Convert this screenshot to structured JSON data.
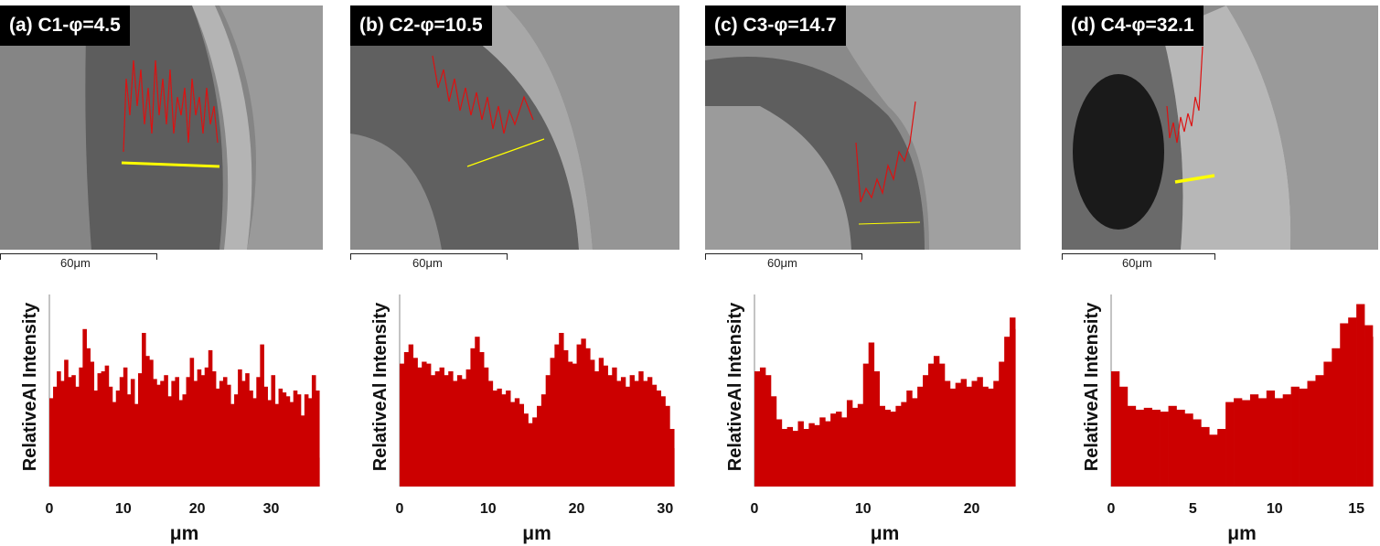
{
  "panels": [
    {
      "label": "(a) C1-φ=4.5",
      "scale_label": "60μm"
    },
    {
      "label": "(b) C2-φ=10.5",
      "scale_label": "60μm"
    },
    {
      "label": "(c) C3-φ=14.7",
      "scale_label": "60μm"
    },
    {
      "label": "(d) C4-φ=32.1",
      "scale_label": "60μm"
    }
  ],
  "colors": {
    "bars": "#cc0000",
    "trace": "#dd1111",
    "scan_line": "#ffff00"
  },
  "chart_data": [
    {
      "type": "bar",
      "xlabel": "μm",
      "ylabel": "RelativeAl Intensity",
      "xlim": [
        0,
        36.5
      ],
      "ylim": [
        0,
        1
      ],
      "xticks": [
        0,
        10,
        20,
        30
      ],
      "x": [
        0,
        0.5,
        1,
        1.5,
        2,
        2.5,
        3,
        3.5,
        4,
        4.5,
        5,
        5.5,
        6,
        6.5,
        7,
        7.5,
        8,
        8.5,
        9,
        9.5,
        10,
        10.5,
        11,
        11.5,
        12,
        12.5,
        13,
        13.5,
        14,
        14.5,
        15,
        15.5,
        16,
        16.5,
        17,
        17.5,
        18,
        18.5,
        19,
        19.5,
        20,
        20.5,
        21,
        21.5,
        22,
        22.5,
        23,
        23.5,
        24,
        24.5,
        25,
        25.5,
        26,
        26.5,
        27,
        27.5,
        28,
        28.5,
        29,
        29.5,
        30,
        30.5,
        31,
        31.5,
        32,
        32.5,
        33,
        33.5,
        34,
        34.5,
        35,
        35.5,
        36,
        36.5
      ],
      "values": [
        0.46,
        0.52,
        0.6,
        0.55,
        0.66,
        0.57,
        0.58,
        0.52,
        0.62,
        0.82,
        0.72,
        0.65,
        0.5,
        0.59,
        0.6,
        0.63,
        0.52,
        0.44,
        0.5,
        0.57,
        0.62,
        0.48,
        0.56,
        0.43,
        0.59,
        0.8,
        0.68,
        0.66,
        0.56,
        0.53,
        0.55,
        0.58,
        0.47,
        0.55,
        0.57,
        0.45,
        0.48,
        0.57,
        0.67,
        0.55,
        0.61,
        0.58,
        0.62,
        0.71,
        0.6,
        0.51,
        0.55,
        0.57,
        0.53,
        0.43,
        0.48,
        0.61,
        0.55,
        0.59,
        0.5,
        0.46,
        0.57,
        0.74,
        0.52,
        0.45,
        0.58,
        0.43,
        0.51,
        0.49,
        0.47,
        0.44,
        0.5,
        0.48,
        0.37,
        0.48,
        0.46,
        0.58,
        0.5,
        0.15
      ]
    },
    {
      "type": "bar",
      "xlabel": "μm",
      "ylabel": "RelativeAl Intensity",
      "xlim": [
        0,
        31
      ],
      "ylim": [
        0,
        1
      ],
      "xticks": [
        0,
        10,
        20,
        30
      ],
      "x": [
        0,
        0.5,
        1,
        1.5,
        2,
        2.5,
        3,
        3.5,
        4,
        4.5,
        5,
        5.5,
        6,
        6.5,
        7,
        7.5,
        8,
        8.5,
        9,
        9.5,
        10,
        10.5,
        11,
        11.5,
        12,
        12.5,
        13,
        13.5,
        14,
        14.5,
        15,
        15.5,
        16,
        16.5,
        17,
        17.5,
        18,
        18.5,
        19,
        19.5,
        20,
        20.5,
        21,
        21.5,
        22,
        22.5,
        23,
        23.5,
        24,
        24.5,
        25,
        25.5,
        26,
        26.5,
        27,
        27.5,
        28,
        28.5,
        29,
        29.5,
        30,
        30.5,
        31
      ],
      "values": [
        0.64,
        0.7,
        0.74,
        0.67,
        0.62,
        0.65,
        0.64,
        0.58,
        0.6,
        0.62,
        0.58,
        0.6,
        0.55,
        0.58,
        0.56,
        0.61,
        0.72,
        0.78,
        0.7,
        0.62,
        0.55,
        0.5,
        0.51,
        0.48,
        0.5,
        0.44,
        0.46,
        0.43,
        0.38,
        0.33,
        0.36,
        0.42,
        0.48,
        0.58,
        0.67,
        0.74,
        0.8,
        0.71,
        0.65,
        0.64,
        0.74,
        0.77,
        0.72,
        0.66,
        0.6,
        0.67,
        0.63,
        0.58,
        0.62,
        0.55,
        0.57,
        0.52,
        0.58,
        0.55,
        0.6,
        0.55,
        0.57,
        0.53,
        0.5,
        0.47,
        0.42,
        0.3,
        0.2
      ]
    },
    {
      "type": "bar",
      "xlabel": "μm",
      "ylabel": "RelativeAl Intensity",
      "xlim": [
        0,
        24
      ],
      "ylim": [
        0,
        1
      ],
      "xticks": [
        0,
        10,
        20
      ],
      "x": [
        0,
        0.5,
        1,
        1.5,
        2,
        2.5,
        3,
        3.5,
        4,
        4.5,
        5,
        5.5,
        6,
        6.5,
        7,
        7.5,
        8,
        8.5,
        9,
        9.5,
        10,
        10.5,
        11,
        11.5,
        12,
        12.5,
        13,
        13.5,
        14,
        14.5,
        15,
        15.5,
        16,
        16.5,
        17,
        17.5,
        18,
        18.5,
        19,
        19.5,
        20,
        20.5,
        21,
        21.5,
        22,
        22.5,
        23,
        23.5,
        24
      ],
      "values": [
        0.6,
        0.62,
        0.58,
        0.47,
        0.35,
        0.3,
        0.31,
        0.29,
        0.34,
        0.3,
        0.33,
        0.32,
        0.36,
        0.34,
        0.38,
        0.39,
        0.36,
        0.45,
        0.41,
        0.43,
        0.64,
        0.75,
        0.6,
        0.42,
        0.4,
        0.39,
        0.42,
        0.44,
        0.5,
        0.46,
        0.52,
        0.58,
        0.64,
        0.68,
        0.64,
        0.55,
        0.51,
        0.54,
        0.56,
        0.52,
        0.55,
        0.57,
        0.52,
        0.51,
        0.55,
        0.65,
        0.78,
        0.88,
        0.82
      ]
    },
    {
      "type": "bar",
      "xlabel": "μm",
      "ylabel": "RelativeAl Intensity",
      "xlim": [
        0,
        16
      ],
      "ylim": [
        0,
        1
      ],
      "xticks": [
        0,
        5,
        10,
        15
      ],
      "x": [
        0,
        0.5,
        1,
        1.5,
        2,
        2.5,
        3,
        3.5,
        4,
        4.5,
        5,
        5.5,
        6,
        6.5,
        7,
        7.5,
        8,
        8.5,
        9,
        9.5,
        10,
        10.5,
        11,
        11.5,
        12,
        12.5,
        13,
        13.5,
        14,
        14.5,
        15,
        15.5,
        16
      ],
      "values": [
        0.6,
        0.52,
        0.42,
        0.4,
        0.41,
        0.4,
        0.39,
        0.42,
        0.4,
        0.38,
        0.35,
        0.31,
        0.27,
        0.3,
        0.44,
        0.46,
        0.45,
        0.48,
        0.46,
        0.5,
        0.46,
        0.48,
        0.52,
        0.51,
        0.55,
        0.58,
        0.65,
        0.72,
        0.85,
        0.88,
        0.95,
        0.84,
        0.78
      ]
    }
  ]
}
